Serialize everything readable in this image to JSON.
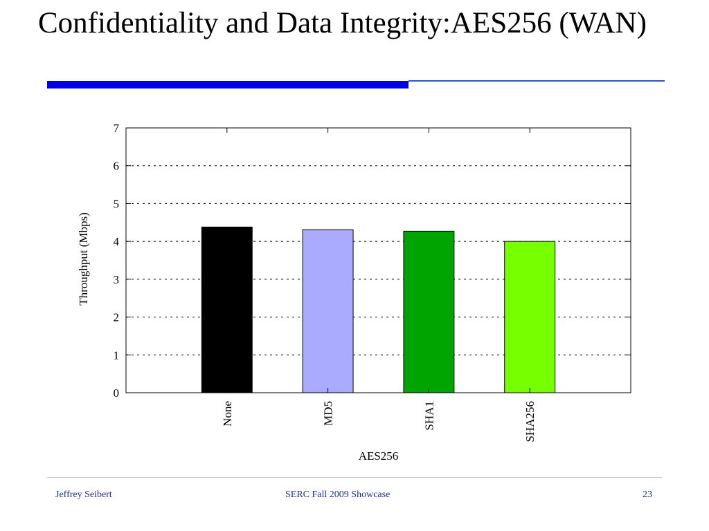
{
  "slide": {
    "title": "Confidentiality and Data Integrity:AES256 (WAN)",
    "footer": {
      "author": "Jeffrey Seibert",
      "event": "SERC Fall 2009 Showcase",
      "page": "23"
    },
    "accent_color": "#0000e0"
  },
  "chart_data": {
    "type": "bar",
    "xlabel": "AES256",
    "ylabel": "Throughput (Mbps)",
    "categories": [
      "None",
      "MD5",
      "SHA1",
      "SHA256"
    ],
    "values": [
      4.38,
      4.31,
      4.27,
      4.0
    ],
    "colors": [
      "#000000",
      "#aaaaff",
      "#00a400",
      "#77ff00"
    ],
    "ylim": [
      0,
      7
    ],
    "yticks": [
      "0",
      "1",
      "2",
      "3",
      "4",
      "5",
      "6",
      "7"
    ],
    "grid": "horizontal dotted",
    "legend": "none"
  }
}
